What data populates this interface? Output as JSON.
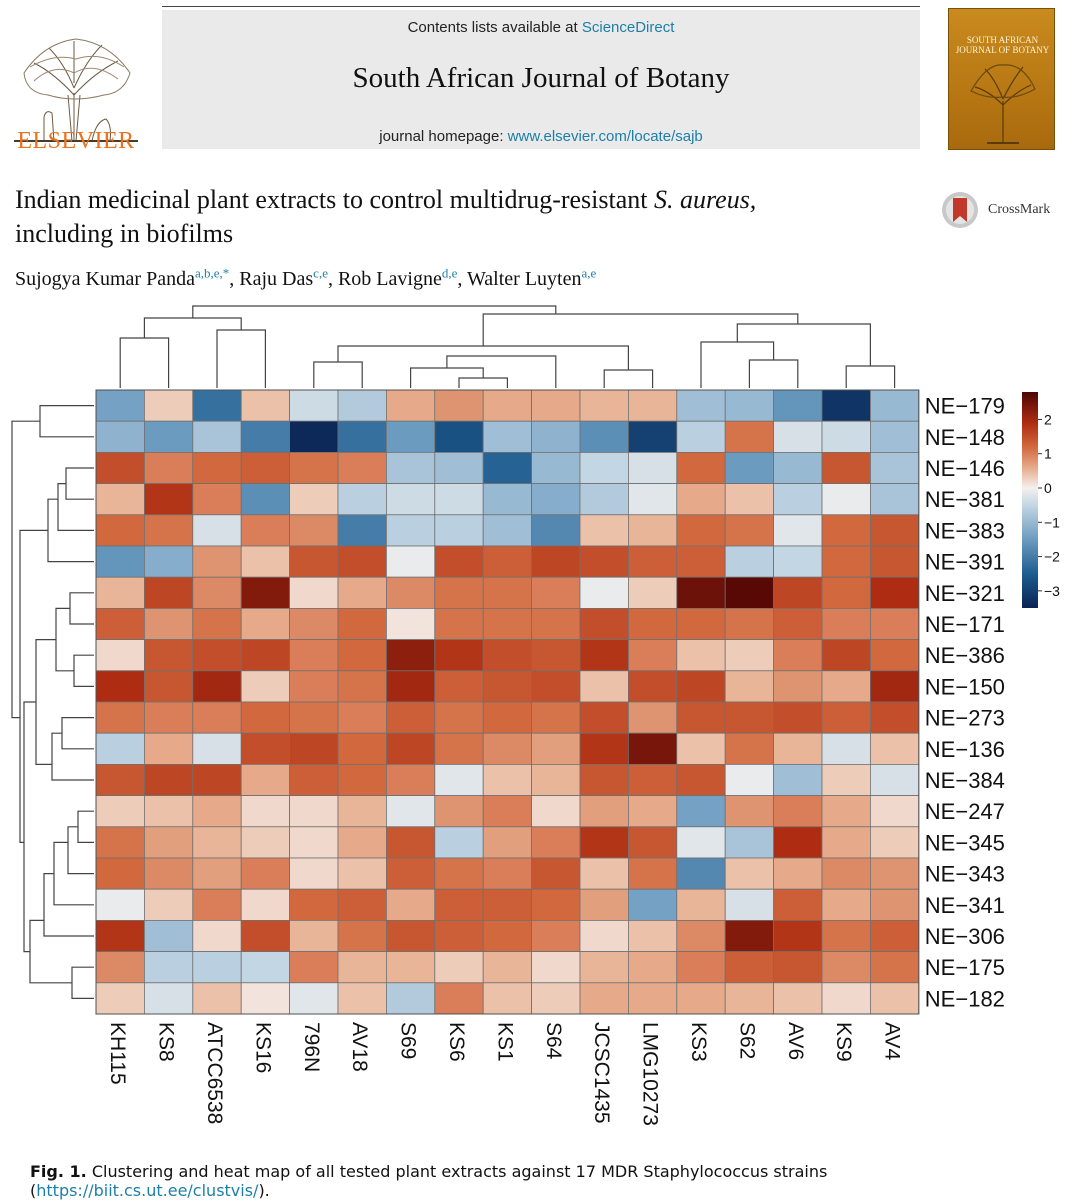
{
  "header": {
    "publisher": "ELSEVIER",
    "contents_prefix": "Contents lists available at ",
    "contents_link": "ScienceDirect",
    "journal_name": "South African Journal of Botany",
    "homepage_prefix": "journal homepage: ",
    "homepage_link": "www.elsevier.com/locate/sajb",
    "cover_title": "SOUTH AFRICAN JOURNAL OF BOTANY",
    "cover_color": "#c98a1e",
    "publisher_color": "#e8731f",
    "link_color": "#1d7fa8"
  },
  "article": {
    "title_part1": "Indian medicinal plant extracts to control multidrug-resistant ",
    "title_italic": "S. aureus,",
    "title_part2": "including in biofilms",
    "crossmark_label": "CrossMark",
    "authors": [
      {
        "name": "Sujogya Kumar Panda",
        "sup": "a,b,e,*",
        "sep": ", "
      },
      {
        "name": "Raju Das",
        "sup": "c,e",
        "sep": ", "
      },
      {
        "name": "Rob Lavigne",
        "sup": "d,e",
        "sep": ", "
      },
      {
        "name": "Walter Luyten",
        "sup": "a,e",
        "sep": ""
      }
    ]
  },
  "chart_data": {
    "type": "heatmap",
    "columns": [
      "KH115",
      "KS8",
      "ATCC6538",
      "KS16",
      "796N",
      "AV18",
      "S69",
      "KS6",
      "KS1",
      "S64",
      "JCSC1435",
      "LMG10273",
      "KS3",
      "S62",
      "AV6",
      "KS9",
      "AV4"
    ],
    "rows": [
      "NE−179",
      "NE−148",
      "NE−146",
      "NE−381",
      "NE−383",
      "NE−391",
      "NE−321",
      "NE−171",
      "NE−386",
      "NE−150",
      "NE−273",
      "NE−136",
      "NE−384",
      "NE−247",
      "NE−345",
      "NE−343",
      "NE−341",
      "NE−306",
      "NE−175",
      "NE−182"
    ],
    "values": [
      [
        -1.4,
        0.3,
        -2.2,
        0.4,
        -0.4,
        -0.7,
        0.6,
        0.8,
        0.6,
        0.6,
        0.5,
        0.5,
        -0.9,
        -1.0,
        -1.6,
        -3.2,
        -1.0
      ],
      [
        -1.1,
        -1.5,
        -0.8,
        -2.0,
        -3.4,
        -2.2,
        -1.5,
        -2.7,
        -0.9,
        -1.1,
        -1.7,
        -3.0,
        -0.6,
        1.1,
        -0.3,
        -0.4,
        -0.9
      ],
      [
        1.5,
        1.0,
        1.2,
        1.3,
        1.1,
        1.0,
        -0.8,
        -0.9,
        -2.4,
        -1.0,
        -0.5,
        -0.3,
        1.2,
        -1.5,
        -1.0,
        1.4,
        -0.8
      ],
      [
        0.5,
        1.8,
        1.0,
        -1.7,
        0.3,
        -0.6,
        -0.4,
        -0.4,
        -1.0,
        -1.2,
        -0.7,
        -0.2,
        0.6,
        0.4,
        -0.6,
        -0.1,
        -0.8
      ],
      [
        1.2,
        1.1,
        -0.3,
        1.0,
        0.9,
        -2.0,
        -0.6,
        -0.6,
        -0.9,
        -1.8,
        0.4,
        0.5,
        1.2,
        1.1,
        -0.2,
        1.2,
        1.4
      ],
      [
        -1.6,
        -1.2,
        0.8,
        0.4,
        1.4,
        1.5,
        -0.1,
        1.5,
        1.3,
        1.6,
        1.5,
        1.3,
        1.3,
        -0.6,
        -0.5,
        1.2,
        1.4
      ],
      [
        0.5,
        1.6,
        0.9,
        2.3,
        0.2,
        0.6,
        0.9,
        1.1,
        1.1,
        1.0,
        -0.1,
        0.3,
        2.5,
        2.7,
        1.6,
        1.2,
        1.9
      ],
      [
        1.3,
        0.8,
        1.1,
        0.6,
        0.9,
        1.2,
        0.1,
        1.1,
        1.1,
        1.1,
        1.5,
        1.2,
        1.2,
        1.1,
        1.3,
        1.0,
        1.0
      ],
      [
        0.2,
        1.4,
        1.5,
        1.6,
        1.0,
        1.2,
        2.2,
        1.8,
        1.5,
        1.4,
        1.8,
        1.0,
        0.4,
        0.3,
        1.0,
        1.6,
        1.2
      ],
      [
        1.9,
        1.4,
        2.0,
        0.3,
        1.0,
        1.1,
        2.0,
        1.3,
        1.4,
        1.5,
        0.4,
        1.5,
        1.6,
        0.5,
        0.8,
        0.6,
        2.0
      ],
      [
        1.1,
        1.0,
        1.0,
        1.2,
        1.1,
        1.0,
        1.3,
        1.1,
        1.2,
        1.1,
        1.5,
        0.8,
        1.4,
        1.4,
        1.5,
        1.3,
        1.5
      ],
      [
        -0.6,
        0.6,
        -0.3,
        1.5,
        1.6,
        1.2,
        1.6,
        1.1,
        0.9,
        0.7,
        1.8,
        2.4,
        0.4,
        1.1,
        0.5,
        -0.3,
        0.4
      ],
      [
        1.4,
        1.6,
        1.6,
        0.6,
        1.3,
        1.2,
        1.0,
        -0.2,
        0.4,
        0.5,
        1.4,
        1.3,
        1.4,
        -0.1,
        -0.9,
        0.3,
        -0.3
      ],
      [
        0.3,
        0.4,
        0.6,
        0.2,
        0.2,
        0.5,
        -0.2,
        0.8,
        1.0,
        0.2,
        0.7,
        0.6,
        -1.4,
        0.8,
        1.0,
        0.6,
        0.2
      ],
      [
        1.1,
        0.7,
        0.5,
        0.3,
        0.2,
        0.6,
        1.4,
        -0.6,
        0.7,
        1.0,
        1.8,
        1.4,
        -0.2,
        -0.8,
        1.9,
        0.6,
        0.3
      ],
      [
        1.2,
        0.9,
        0.7,
        1.0,
        0.2,
        0.4,
        1.3,
        1.1,
        1.0,
        1.4,
        0.4,
        1.1,
        -1.8,
        0.4,
        0.6,
        0.9,
        0.8
      ],
      [
        -0.1,
        0.3,
        1.0,
        0.2,
        1.2,
        1.3,
        0.6,
        1.3,
        1.3,
        1.2,
        0.7,
        -1.4,
        0.5,
        -0.3,
        1.3,
        0.6,
        0.8
      ],
      [
        1.8,
        -0.9,
        0.2,
        1.5,
        0.5,
        1.1,
        1.4,
        1.3,
        1.2,
        1.0,
        0.2,
        0.4,
        0.9,
        2.3,
        1.8,
        1.1,
        1.3
      ],
      [
        0.9,
        -0.6,
        -0.6,
        -0.5,
        1.0,
        0.5,
        0.5,
        0.3,
        0.5,
        0.2,
        0.5,
        0.6,
        1.0,
        1.3,
        1.4,
        0.9,
        1.1
      ],
      [
        0.3,
        -0.3,
        0.4,
        0.1,
        -0.2,
        0.4,
        -0.7,
        1.0,
        0.4,
        0.3,
        0.6,
        0.6,
        0.6,
        0.5,
        0.4,
        0.2,
        0.4
      ]
    ],
    "color_scale": {
      "min": -3.5,
      "max": 2.8,
      "ticks": [
        2,
        1,
        0,
        -1,
        -2,
        -3
      ],
      "tick_labels": [
        "2",
        "1",
        "0",
        "−1",
        "−2",
        "−3"
      ],
      "stops": [
        {
          "v": -3.5,
          "c": "#0a2354"
        },
        {
          "v": -2.5,
          "c": "#1e5d8f"
        },
        {
          "v": -1.5,
          "c": "#6c9bc0"
        },
        {
          "v": -0.5,
          "c": "#c3d6e3"
        },
        {
          "v": 0.0,
          "c": "#f4f0ee"
        },
        {
          "v": 0.5,
          "c": "#e9b598"
        },
        {
          "v": 1.2,
          "c": "#d2683e"
        },
        {
          "v": 1.9,
          "c": "#ad2c12"
        },
        {
          "v": 2.8,
          "c": "#4d0505"
        }
      ]
    },
    "title": "",
    "xlabel": "",
    "ylabel": "",
    "legend_position": "right"
  },
  "caption": {
    "label": "Fig. 1.",
    "text": " Clustering and heat map of all tested plant extracts against 17 MDR Staphylococcus strains (",
    "link": "https://biit.cs.ut.ee/clustvis/",
    "suffix": ")."
  }
}
